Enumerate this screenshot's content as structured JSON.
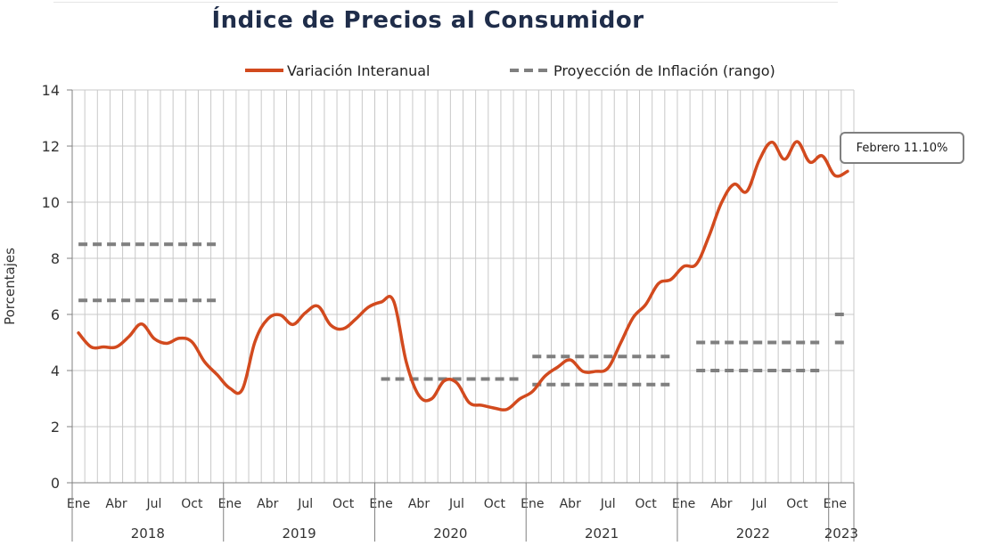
{
  "chart_data": {
    "type": "line",
    "title": "Índice de Precios al Consumidor",
    "ylabel": "Porcentajes",
    "xlabel": "",
    "ylim": [
      0,
      14
    ],
    "yticks": [
      0,
      2,
      4,
      6,
      8,
      10,
      12,
      14
    ],
    "grid": true,
    "legend_position": "top",
    "x_month_labels": [
      "Ene",
      "Abr",
      "Jul",
      "Oct"
    ],
    "years": [
      "2018",
      "2019",
      "2020",
      "2021",
      "2022",
      "2023"
    ],
    "series": [
      {
        "name": "Variación Interanual",
        "color": "#d24a1e",
        "style": "solid",
        "x": [
          "2018-01",
          "2018-02",
          "2018-03",
          "2018-04",
          "2018-05",
          "2018-06",
          "2018-07",
          "2018-08",
          "2018-09",
          "2018-10",
          "2018-11",
          "2018-12",
          "2019-01",
          "2019-02",
          "2019-03",
          "2019-04",
          "2019-05",
          "2019-06",
          "2019-07",
          "2019-08",
          "2019-09",
          "2019-10",
          "2019-11",
          "2019-12",
          "2020-01",
          "2020-02",
          "2020-03",
          "2020-04",
          "2020-05",
          "2020-06",
          "2020-07",
          "2020-08",
          "2020-09",
          "2020-10",
          "2020-11",
          "2020-12",
          "2021-01",
          "2021-02",
          "2021-03",
          "2021-04",
          "2021-05",
          "2021-06",
          "2021-07",
          "2021-08",
          "2021-09",
          "2021-10",
          "2021-11",
          "2021-12",
          "2022-01",
          "2022-02",
          "2022-03",
          "2022-04",
          "2022-05",
          "2022-06",
          "2022-07",
          "2022-08",
          "2022-09",
          "2022-10",
          "2022-11",
          "2022-12",
          "2023-01",
          "2023-02"
        ],
        "values": [
          5.34,
          4.84,
          4.84,
          4.84,
          5.21,
          5.66,
          5.14,
          4.97,
          5.15,
          5.02,
          4.31,
          3.85,
          3.37,
          3.33,
          5.03,
          5.83,
          5.98,
          5.64,
          6.06,
          6.29,
          5.62,
          5.49,
          5.84,
          6.26,
          6.44,
          6.47,
          4.3,
          3.11,
          2.99,
          3.63,
          3.56,
          2.85,
          2.76,
          2.66,
          2.62,
          2.99,
          3.25,
          3.8,
          4.12,
          4.38,
          3.97,
          3.97,
          4.09,
          4.98,
          5.89,
          6.36,
          7.1,
          7.25,
          7.71,
          7.79,
          8.78,
          9.98,
          10.64,
          10.38,
          11.5,
          12.14,
          11.53,
          12.16,
          11.43,
          11.65,
          10.95,
          11.1
        ]
      },
      {
        "name": "Proyección de Inflación (rango)",
        "color": "#7f7f7f",
        "style": "dashed",
        "segments": [
          {
            "from": "2018-01",
            "to": "2018-12",
            "value": 8.5
          },
          {
            "from": "2018-01",
            "to": "2018-12",
            "value": 6.5
          },
          {
            "from": "2020-01",
            "to": "2020-12",
            "value": 3.7
          },
          {
            "from": "2021-01",
            "to": "2021-12",
            "value": 4.5
          },
          {
            "from": "2021-01",
            "to": "2021-12",
            "value": 3.5
          },
          {
            "from": "2022-02",
            "to": "2022-12",
            "value": 5.0
          },
          {
            "from": "2022-02",
            "to": "2022-12",
            "value": 4.0
          },
          {
            "from": "2023-01",
            "to": "2023-02",
            "value": 6.0
          },
          {
            "from": "2023-01",
            "to": "2023-02",
            "value": 5.0
          }
        ]
      }
    ],
    "annotation": "Febrero 11.10%"
  }
}
